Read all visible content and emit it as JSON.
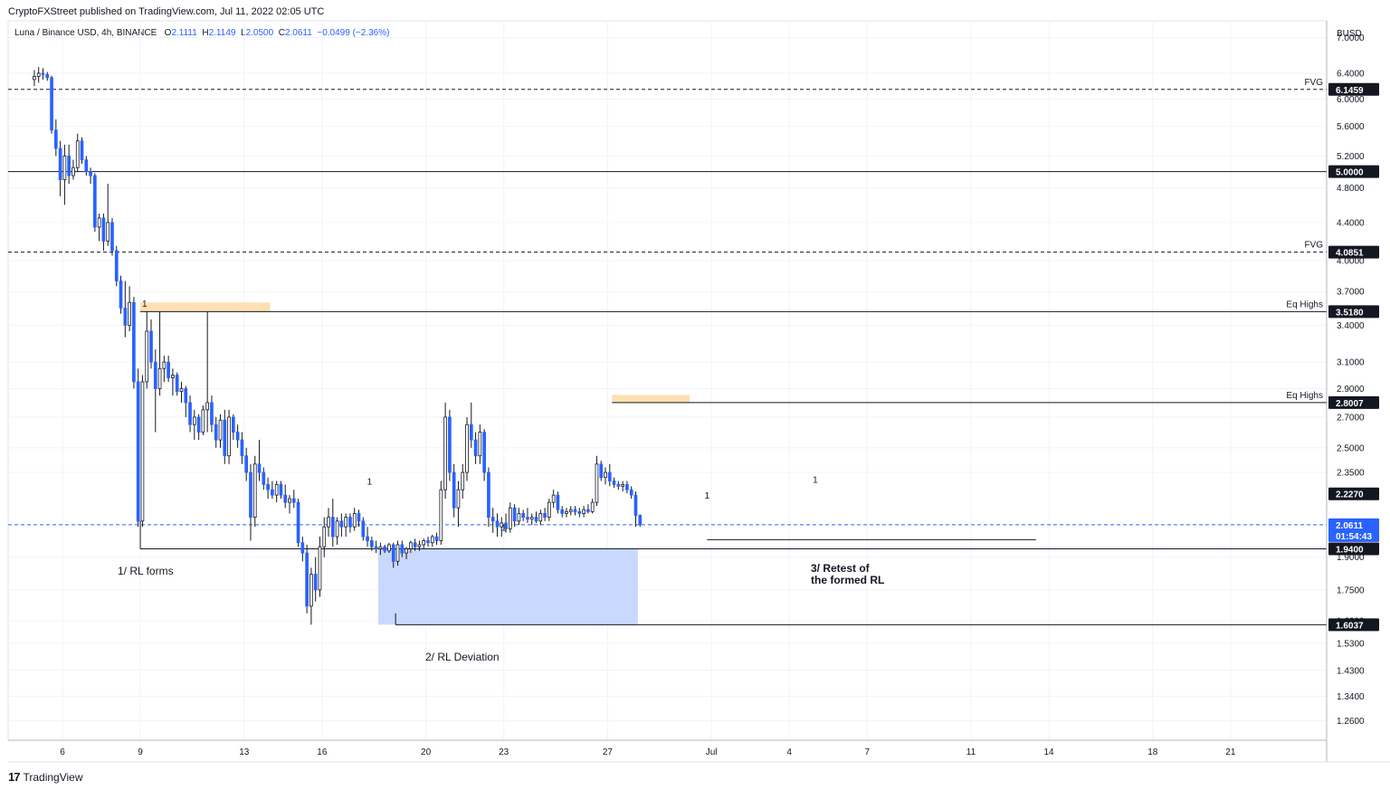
{
  "header": {
    "publisher": "CryptoFXStreet published on TradingView.com, Jul 11, 2022 02:05 UTC"
  },
  "legend": {
    "symbol": "Luna / Binance USD, 4h, BINANCE",
    "o_label": "O",
    "o": "2.1111",
    "h_label": "H",
    "h": "2.1149",
    "l_label": "L",
    "l": "2.0500",
    "c_label": "C",
    "c": "2.0611",
    "change": "−0.0499 (−2.36%)"
  },
  "footer": {
    "brand": "TradingView"
  },
  "colors": {
    "up": "#ffffff",
    "down": "#2962ff",
    "wick": "#131722",
    "highlight_orange": "#ffe0b2",
    "highlight_blue": "#c9d8ff",
    "fvg": "#43a047",
    "eq_highs": "#e53935",
    "last_price": "#2962ff"
  },
  "chart_data": {
    "type": "candlestick",
    "title": "Luna / Binance USD, 4h, BINANCE",
    "currency_label": "BUSD",
    "y_scale": "log",
    "ylim": [
      1.2,
      7.3
    ],
    "y_ticks": [
      "7.0000",
      "6.4000",
      "6.0000",
      "5.6000",
      "5.2000",
      "4.8000",
      "4.4000",
      "4.0000",
      "3.7000",
      "3.4000",
      "3.1000",
      "2.9000",
      "2.7000",
      "2.5000",
      "2.3500",
      "1.9000",
      "1.7500",
      "1.6200",
      "1.5300",
      "1.4300",
      "1.3400",
      "1.2600"
    ],
    "x_ticks": [
      "6",
      "9",
      "13",
      "16",
      "20",
      "23",
      "27",
      "Jul",
      "4",
      "7",
      "11",
      "14",
      "18",
      "21"
    ],
    "grid": true,
    "price_badges": [
      {
        "label": "6.1459",
        "style": "dark"
      },
      {
        "label": "5.0000",
        "style": "dark"
      },
      {
        "label": "4.0851",
        "style": "dark"
      },
      {
        "label": "3.5180",
        "style": "dark"
      },
      {
        "label": "2.8007",
        "style": "dark"
      },
      {
        "label": "2.2270",
        "style": "dark"
      },
      {
        "label": "2.0611",
        "style": "blue",
        "countdown": "01:54:43"
      },
      {
        "label": "1.9400",
        "style": "dark"
      },
      {
        "label": "1.6037",
        "style": "dark"
      }
    ],
    "level_labels": [
      {
        "text": "FVG",
        "price": 6.1459,
        "color": "fvg"
      },
      {
        "text": "FVG",
        "price": 4.0851,
        "color": "fvg"
      },
      {
        "text": "Eq Highs",
        "price": 3.518,
        "color": "eq_highs"
      },
      {
        "text": "Eq Highs",
        "price": 2.8007,
        "color": "eq_highs"
      }
    ],
    "annotations": [
      "1/ RL forms",
      "2/ RL Deviation",
      "3/ Retest of the formed RL"
    ],
    "last_price": 2.0611,
    "x_start": "2022-06-04 20:00",
    "candle_interval_hours": 4,
    "candles_ohlc": [
      [
        6.3,
        6.45,
        6.2,
        6.35
      ],
      [
        6.35,
        6.5,
        6.25,
        6.4
      ],
      [
        6.4,
        6.48,
        6.3,
        6.38
      ],
      [
        6.38,
        6.42,
        6.28,
        6.33
      ],
      [
        6.33,
        6.36,
        5.5,
        5.55
      ],
      [
        5.55,
        5.7,
        5.2,
        5.3
      ],
      [
        5.3,
        5.4,
        4.7,
        4.9
      ],
      [
        4.9,
        5.35,
        4.6,
        5.2
      ],
      [
        5.2,
        5.35,
        4.85,
        4.95
      ],
      [
        4.95,
        5.15,
        4.9,
        5.05
      ],
      [
        5.05,
        5.5,
        5.0,
        5.4
      ],
      [
        5.4,
        5.45,
        5.1,
        5.15
      ],
      [
        5.15,
        5.2,
        4.95,
        5.0
      ],
      [
        5.0,
        5.05,
        4.85,
        4.95
      ],
      [
        4.95,
        4.98,
        4.3,
        4.35
      ],
      [
        4.35,
        4.5,
        4.2,
        4.45
      ],
      [
        4.45,
        4.5,
        4.1,
        4.2
      ],
      [
        4.2,
        4.85,
        4.15,
        4.4
      ],
      [
        4.4,
        4.45,
        4.05,
        4.1
      ],
      [
        4.1,
        4.15,
        3.75,
        3.8
      ],
      [
        3.8,
        3.85,
        3.5,
        3.55
      ],
      [
        3.55,
        3.8,
        3.3,
        3.4
      ],
      [
        3.4,
        3.75,
        3.35,
        3.6
      ],
      [
        3.6,
        3.65,
        2.9,
        2.95
      ],
      [
        2.95,
        3.05,
        2.05,
        2.08
      ],
      [
        2.08,
        3.0,
        2.05,
        2.95
      ],
      [
        2.95,
        3.52,
        2.9,
        3.35
      ],
      [
        3.35,
        3.45,
        3.05,
        3.1
      ],
      [
        3.1,
        3.2,
        2.6,
        2.9
      ],
      [
        2.9,
        3.52,
        2.85,
        3.05
      ],
      [
        3.05,
        3.15,
        2.95,
        3.1
      ],
      [
        3.1,
        3.15,
        2.95,
        2.98
      ],
      [
        2.98,
        3.05,
        2.85,
        3.0
      ],
      [
        3.0,
        3.02,
        2.85,
        2.88
      ],
      [
        2.88,
        2.95,
        2.8,
        2.9
      ],
      [
        2.9,
        2.92,
        2.7,
        2.8
      ],
      [
        2.8,
        2.85,
        2.6,
        2.65
      ],
      [
        2.65,
        2.75,
        2.55,
        2.7
      ],
      [
        2.7,
        2.72,
        2.55,
        2.6
      ],
      [
        2.6,
        2.78,
        2.58,
        2.75
      ],
      [
        2.75,
        3.52,
        2.6,
        2.8
      ],
      [
        2.8,
        2.85,
        2.6,
        2.65
      ],
      [
        2.65,
        2.7,
        2.5,
        2.55
      ],
      [
        2.55,
        2.72,
        2.5,
        2.68
      ],
      [
        2.68,
        2.75,
        2.4,
        2.45
      ],
      [
        2.45,
        2.75,
        2.4,
        2.7
      ],
      [
        2.7,
        2.72,
        2.55,
        2.6
      ],
      [
        2.6,
        2.65,
        2.5,
        2.55
      ],
      [
        2.55,
        2.6,
        2.4,
        2.45
      ],
      [
        2.45,
        2.5,
        2.3,
        2.35
      ],
      [
        2.35,
        2.4,
        1.98,
        2.1
      ],
      [
        2.1,
        2.45,
        2.05,
        2.4
      ],
      [
        2.4,
        2.55,
        2.3,
        2.35
      ],
      [
        2.35,
        2.38,
        2.25,
        2.28
      ],
      [
        2.28,
        2.32,
        2.2,
        2.25
      ],
      [
        2.25,
        2.3,
        2.2,
        2.22
      ],
      [
        2.22,
        2.3,
        2.18,
        2.28
      ],
      [
        2.28,
        2.3,
        2.2,
        2.22
      ],
      [
        2.22,
        2.28,
        2.15,
        2.18
      ],
      [
        2.18,
        2.22,
        2.12,
        2.2
      ],
      [
        2.2,
        2.25,
        2.15,
        2.18
      ],
      [
        2.18,
        2.2,
        1.95,
        1.97
      ],
      [
        1.97,
        2.0,
        1.88,
        1.92
      ],
      [
        1.92,
        1.96,
        1.65,
        1.68
      ],
      [
        1.68,
        1.85,
        1.6037,
        1.82
      ],
      [
        1.82,
        1.9,
        1.7,
        1.75
      ],
      [
        1.75,
        2.0,
        1.72,
        1.95
      ],
      [
        1.95,
        2.1,
        1.9,
        2.05
      ],
      [
        2.05,
        2.15,
        2.0,
        2.1
      ],
      [
        2.1,
        2.2,
        1.95,
        2.0
      ],
      [
        2.0,
        2.1,
        1.96,
        2.08
      ],
      [
        2.08,
        2.12,
        2.0,
        2.05
      ],
      [
        2.05,
        2.12,
        2.0,
        2.1
      ],
      [
        2.1,
        2.12,
        2.02,
        2.05
      ],
      [
        2.05,
        2.15,
        2.03,
        2.12
      ],
      [
        2.12,
        2.14,
        2.05,
        2.08
      ],
      [
        2.08,
        2.1,
        1.98,
        2.0
      ],
      [
        2.0,
        2.05,
        1.95,
        1.98
      ],
      [
        1.98,
        2.0,
        1.93,
        1.95
      ],
      [
        1.95,
        1.98,
        1.92,
        1.94
      ],
      [
        1.94,
        1.97,
        1.91,
        1.95
      ],
      [
        1.95,
        1.96,
        1.92,
        1.93
      ],
      [
        1.93,
        1.97,
        1.92,
        1.96
      ],
      [
        1.96,
        1.97,
        1.85,
        1.88
      ],
      [
        1.88,
        1.98,
        1.86,
        1.96
      ],
      [
        1.96,
        1.98,
        1.9,
        1.92
      ],
      [
        1.92,
        1.95,
        1.89,
        1.94
      ],
      [
        1.94,
        1.98,
        1.92,
        1.97
      ],
      [
        1.97,
        1.99,
        1.93,
        1.95
      ],
      [
        1.95,
        1.98,
        1.93,
        1.96
      ],
      [
        1.96,
        1.99,
        1.94,
        1.98
      ],
      [
        1.98,
        2.0,
        1.95,
        1.97
      ],
      [
        1.97,
        2.01,
        1.95,
        2.0
      ],
      [
        2.0,
        2.02,
        1.96,
        1.98
      ],
      [
        1.98,
        2.3,
        1.96,
        2.25
      ],
      [
        2.25,
        2.8007,
        2.2,
        2.7
      ],
      [
        2.7,
        2.75,
        2.3,
        2.35
      ],
      [
        2.35,
        2.4,
        2.1,
        2.15
      ],
      [
        2.15,
        2.3,
        2.05,
        2.25
      ],
      [
        2.25,
        2.4,
        2.2,
        2.35
      ],
      [
        2.35,
        2.7,
        2.3,
        2.65
      ],
      [
        2.65,
        2.8007,
        2.5,
        2.55
      ],
      [
        2.55,
        2.6,
        2.4,
        2.45
      ],
      [
        2.45,
        2.65,
        2.4,
        2.6
      ],
      [
        2.6,
        2.62,
        2.3,
        2.35
      ],
      [
        2.35,
        2.38,
        2.05,
        2.1
      ],
      [
        2.1,
        2.15,
        2.02,
        2.08
      ],
      [
        2.08,
        2.12,
        2.0,
        2.05
      ],
      [
        2.05,
        2.1,
        2.0,
        2.07
      ],
      [
        2.07,
        2.12,
        2.02,
        2.04
      ],
      [
        2.04,
        2.18,
        2.02,
        2.15
      ],
      [
        2.15,
        2.17,
        2.05,
        2.08
      ],
      [
        2.08,
        2.15,
        2.06,
        2.12
      ],
      [
        2.12,
        2.14,
        2.08,
        2.1
      ],
      [
        2.1,
        2.15,
        2.07,
        2.09
      ],
      [
        2.09,
        2.12,
        2.06,
        2.1
      ],
      [
        2.1,
        2.13,
        2.07,
        2.08
      ],
      [
        2.08,
        2.14,
        2.06,
        2.12
      ],
      [
        2.12,
        2.15,
        2.08,
        2.1
      ],
      [
        2.1,
        2.2,
        2.08,
        2.18
      ],
      [
        2.18,
        2.25,
        2.15,
        2.22
      ],
      [
        2.22,
        2.24,
        2.12,
        2.14
      ],
      [
        2.14,
        2.16,
        2.1,
        2.12
      ],
      [
        2.12,
        2.15,
        2.1,
        2.13
      ],
      [
        2.13,
        2.16,
        2.11,
        2.14
      ],
      [
        2.14,
        2.16,
        2.11,
        2.13
      ],
      [
        2.13,
        2.15,
        2.1,
        2.12
      ],
      [
        2.12,
        2.16,
        2.1,
        2.14
      ],
      [
        2.14,
        2.17,
        2.12,
        2.13
      ],
      [
        2.13,
        2.2,
        2.12,
        2.18
      ],
      [
        2.18,
        2.45,
        2.16,
        2.4
      ],
      [
        2.4,
        2.42,
        2.3,
        2.32
      ],
      [
        2.32,
        2.38,
        2.28,
        2.35
      ],
      [
        2.35,
        2.4,
        2.27,
        2.3
      ],
      [
        2.3,
        2.32,
        2.26,
        2.28
      ],
      [
        2.28,
        2.3,
        2.25,
        2.27
      ],
      [
        2.27,
        2.3,
        2.24,
        2.28
      ],
      [
        2.28,
        2.3,
        2.23,
        2.25
      ],
      [
        2.25,
        2.27,
        2.2,
        2.22
      ],
      [
        2.22,
        2.24,
        2.05,
        2.11
      ],
      [
        2.11,
        2.1149,
        2.05,
        2.0611
      ]
    ]
  }
}
